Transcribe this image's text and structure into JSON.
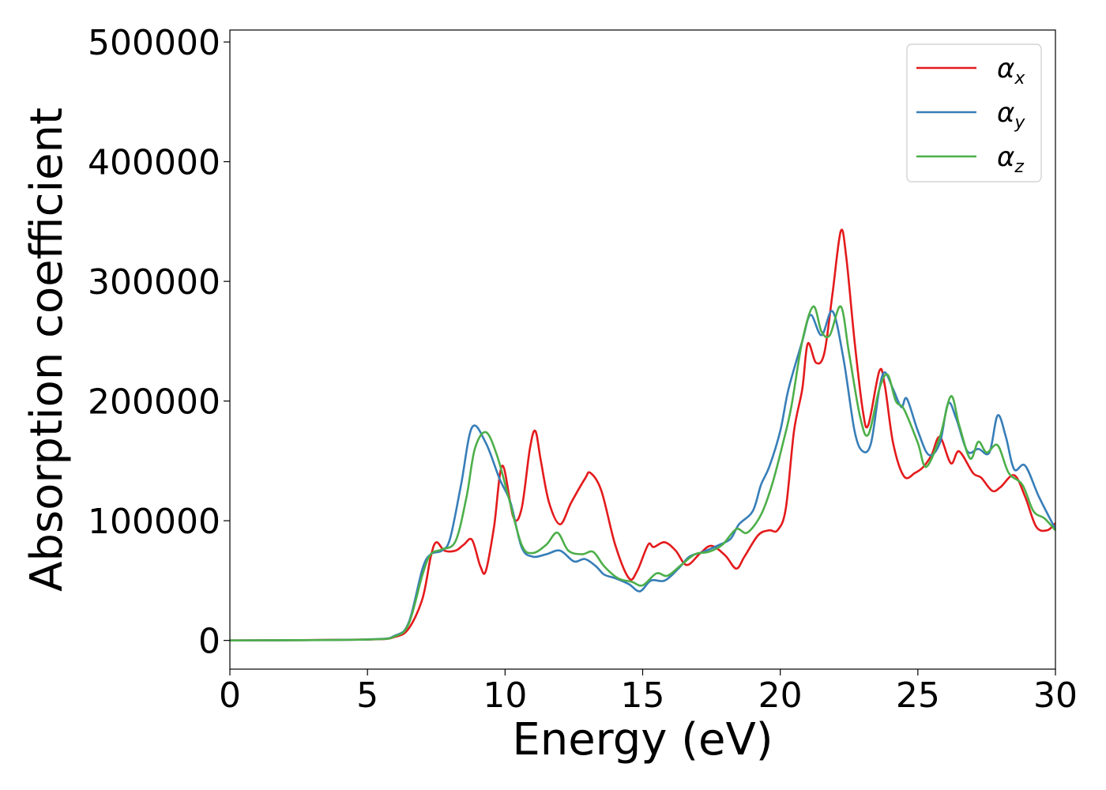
{
  "chart_data": {
    "type": "line",
    "xlabel": "Energy (eV)",
    "ylabel": "Absorption coefficient",
    "xlim": [
      0,
      30
    ],
    "ylim": [
      -24000,
      510000
    ],
    "xticks": [
      0,
      5,
      10,
      15,
      20,
      25,
      30
    ],
    "xtick_labels": [
      "0",
      "5",
      "10",
      "15",
      "20",
      "25",
      "30"
    ],
    "yticks": [
      0,
      100000,
      200000,
      300000,
      400000,
      500000
    ],
    "ytick_labels": [
      "0",
      "100000",
      "200000",
      "300000",
      "400000",
      "500000"
    ],
    "grid": false,
    "legend_position": "top-right",
    "series": [
      {
        "name": "αx",
        "symbol": "α",
        "subscript": "x",
        "color": "#e41a1c",
        "points": [
          [
            0,
            0
          ],
          [
            5,
            700
          ],
          [
            6,
            3000
          ],
          [
            6.5,
            10000
          ],
          [
            7,
            35000
          ],
          [
            7.3,
            70000
          ],
          [
            7.5,
            82000
          ],
          [
            7.8,
            75000
          ],
          [
            8.2,
            75000
          ],
          [
            8.5,
            80000
          ],
          [
            8.8,
            84000
          ],
          [
            9.1,
            62000
          ],
          [
            9.3,
            58000
          ],
          [
            9.6,
            95000
          ],
          [
            9.9,
            146000
          ],
          [
            10.3,
            103000
          ],
          [
            10.6,
            110000
          ],
          [
            10.9,
            160000
          ],
          [
            11.1,
            175000
          ],
          [
            11.3,
            150000
          ],
          [
            11.6,
            115000
          ],
          [
            12,
            97000
          ],
          [
            12.4,
            115000
          ],
          [
            12.9,
            135000
          ],
          [
            13.1,
            140000
          ],
          [
            13.5,
            125000
          ],
          [
            14,
            80000
          ],
          [
            14.5,
            52000
          ],
          [
            14.8,
            58000
          ],
          [
            15.2,
            80000
          ],
          [
            15.4,
            78000
          ],
          [
            15.8,
            82000
          ],
          [
            16.2,
            75000
          ],
          [
            16.6,
            63000
          ],
          [
            17.1,
            73000
          ],
          [
            17.5,
            79000
          ],
          [
            18,
            71000
          ],
          [
            18.4,
            60000
          ],
          [
            18.7,
            70000
          ],
          [
            19.2,
            88000
          ],
          [
            19.6,
            92000
          ],
          [
            19.9,
            92000
          ],
          [
            20.2,
            110000
          ],
          [
            20.5,
            175000
          ],
          [
            20.8,
            210000
          ],
          [
            21,
            248000
          ],
          [
            21.3,
            232000
          ],
          [
            21.6,
            240000
          ],
          [
            21.9,
            290000
          ],
          [
            22.2,
            342000
          ],
          [
            22.4,
            320000
          ],
          [
            22.7,
            250000
          ],
          [
            23,
            192000
          ],
          [
            23.2,
            180000
          ],
          [
            23.6,
            225000
          ],
          [
            23.8,
            213000
          ],
          [
            24.1,
            165000
          ],
          [
            24.5,
            137000
          ],
          [
            24.9,
            140000
          ],
          [
            25.2,
            145000
          ],
          [
            25.5,
            155000
          ],
          [
            25.8,
            170000
          ],
          [
            26.2,
            148000
          ],
          [
            26.5,
            158000
          ],
          [
            27,
            140000
          ],
          [
            27.3,
            136000
          ],
          [
            27.7,
            125000
          ],
          [
            28,
            128000
          ],
          [
            28.5,
            138000
          ],
          [
            28.9,
            120000
          ],
          [
            29.3,
            95000
          ],
          [
            29.7,
            92000
          ],
          [
            30,
            98000
          ]
        ]
      },
      {
        "name": "αy",
        "symbol": "α",
        "subscript": "y",
        "color": "#377eb8",
        "points": [
          [
            0,
            0
          ],
          [
            5,
            800
          ],
          [
            6,
            4000
          ],
          [
            6.5,
            15000
          ],
          [
            7,
            60000
          ],
          [
            7.3,
            72000
          ],
          [
            7.7,
            75000
          ],
          [
            8,
            85000
          ],
          [
            8.4,
            130000
          ],
          [
            8.8,
            178000
          ],
          [
            9.3,
            165000
          ],
          [
            9.8,
            135000
          ],
          [
            10.2,
            115000
          ],
          [
            10.6,
            78000
          ],
          [
            11,
            70000
          ],
          [
            11.5,
            72000
          ],
          [
            12,
            75000
          ],
          [
            12.5,
            66000
          ],
          [
            12.9,
            68000
          ],
          [
            13.3,
            62000
          ],
          [
            13.6,
            55000
          ],
          [
            14,
            52000
          ],
          [
            14.5,
            47000
          ],
          [
            14.9,
            41000
          ],
          [
            15.3,
            50000
          ],
          [
            15.8,
            50000
          ],
          [
            16.3,
            60000
          ],
          [
            16.7,
            70000
          ],
          [
            17.2,
            74000
          ],
          [
            17.8,
            80000
          ],
          [
            18.2,
            85000
          ],
          [
            18.5,
            97000
          ],
          [
            19,
            108000
          ],
          [
            19.3,
            130000
          ],
          [
            19.6,
            145000
          ],
          [
            20,
            175000
          ],
          [
            20.3,
            210000
          ],
          [
            20.8,
            250000
          ],
          [
            21.1,
            272000
          ],
          [
            21.5,
            255000
          ],
          [
            21.9,
            275000
          ],
          [
            22.3,
            235000
          ],
          [
            22.7,
            175000
          ],
          [
            23,
            158000
          ],
          [
            23.3,
            165000
          ],
          [
            23.6,
            210000
          ],
          [
            23.8,
            224000
          ],
          [
            24.1,
            210000
          ],
          [
            24.4,
            195000
          ],
          [
            24.6,
            202000
          ],
          [
            25,
            175000
          ],
          [
            25.4,
            155000
          ],
          [
            25.8,
            165000
          ],
          [
            26.1,
            198000
          ],
          [
            26.4,
            185000
          ],
          [
            26.8,
            158000
          ],
          [
            27.2,
            160000
          ],
          [
            27.6,
            157000
          ],
          [
            27.9,
            188000
          ],
          [
            28.2,
            170000
          ],
          [
            28.5,
            143000
          ],
          [
            28.9,
            146000
          ],
          [
            29.4,
            120000
          ],
          [
            30,
            93000
          ]
        ]
      },
      {
        "name": "αz",
        "symbol": "α",
        "subscript": "z",
        "color": "#4daf4a",
        "points": [
          [
            0,
            0
          ],
          [
            5,
            750
          ],
          [
            6,
            3500
          ],
          [
            6.5,
            14000
          ],
          [
            7,
            55000
          ],
          [
            7.3,
            72000
          ],
          [
            7.7,
            76000
          ],
          [
            8.2,
            83000
          ],
          [
            8.6,
            120000
          ],
          [
            8.9,
            160000
          ],
          [
            9.3,
            174000
          ],
          [
            9.7,
            155000
          ],
          [
            10.1,
            122000
          ],
          [
            10.6,
            80000
          ],
          [
            11,
            73000
          ],
          [
            11.5,
            80000
          ],
          [
            11.9,
            90000
          ],
          [
            12.3,
            75000
          ],
          [
            12.8,
            72000
          ],
          [
            13.2,
            74000
          ],
          [
            13.6,
            62000
          ],
          [
            14.1,
            52000
          ],
          [
            14.6,
            49000
          ],
          [
            15,
            46000
          ],
          [
            15.5,
            56000
          ],
          [
            15.9,
            54000
          ],
          [
            16.4,
            63000
          ],
          [
            16.9,
            72000
          ],
          [
            17.4,
            74000
          ],
          [
            17.9,
            80000
          ],
          [
            18.4,
            93000
          ],
          [
            18.8,
            90000
          ],
          [
            19.3,
            105000
          ],
          [
            19.7,
            130000
          ],
          [
            20.1,
            165000
          ],
          [
            20.4,
            195000
          ],
          [
            20.8,
            250000
          ],
          [
            21.2,
            279000
          ],
          [
            21.5,
            258000
          ],
          [
            21.8,
            255000
          ],
          [
            22.2,
            279000
          ],
          [
            22.5,
            240000
          ],
          [
            22.9,
            187000
          ],
          [
            23.2,
            172000
          ],
          [
            23.6,
            210000
          ],
          [
            23.9,
            222000
          ],
          [
            24.2,
            200000
          ],
          [
            24.5,
            193000
          ],
          [
            25,
            165000
          ],
          [
            25.3,
            145000
          ],
          [
            25.8,
            170000
          ],
          [
            26.2,
            204000
          ],
          [
            26.5,
            180000
          ],
          [
            26.9,
            152000
          ],
          [
            27.2,
            166000
          ],
          [
            27.5,
            157000
          ],
          [
            27.9,
            163000
          ],
          [
            28.3,
            140000
          ],
          [
            28.8,
            130000
          ],
          [
            29.2,
            108000
          ],
          [
            29.6,
            102000
          ],
          [
            30,
            92000
          ]
        ]
      }
    ]
  }
}
